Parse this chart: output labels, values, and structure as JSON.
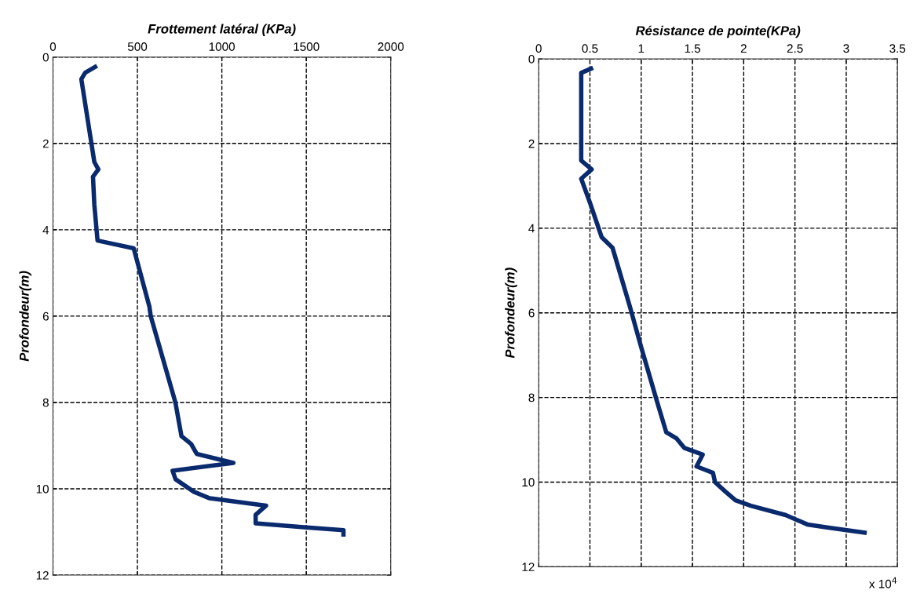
{
  "chart_data": [
    {
      "type": "line",
      "xlabel": "Frottement latéral (KPa)",
      "ylabel": "Profondeur(m)",
      "xlim": [
        0,
        2000
      ],
      "ylim": [
        12,
        0
      ],
      "xticks": [
        0,
        500,
        1000,
        1500,
        2000
      ],
      "yticks": [
        0,
        2,
        4,
        6,
        8,
        10,
        12
      ],
      "grid": true,
      "series": [
        {
          "color": "#0a2a6e",
          "x": [
            261,
            191,
            168,
            245,
            269,
            237,
            245,
            264,
            478,
            571,
            579,
            725,
            761,
            818,
            851,
            1068,
            708,
            726,
            835,
            928,
            1262,
            1200,
            1200,
            1487,
            1720,
            1720
          ],
          "values": [
            0.2,
            0.36,
            0.51,
            2.43,
            2.6,
            2.77,
            3.42,
            4.25,
            4.43,
            5.78,
            6.0,
            8.0,
            8.78,
            8.96,
            9.19,
            9.4,
            9.58,
            9.78,
            10.07,
            10.22,
            10.39,
            10.6,
            10.8,
            10.89,
            10.96,
            11.11
          ]
        }
      ]
    },
    {
      "type": "line",
      "xlabel": "Résistance de pointe(KPa)",
      "ylabel": "Profondeur(m)",
      "xlim": [
        0,
        3.5
      ],
      "ylim": [
        12,
        0
      ],
      "xticks": [
        0,
        0.5,
        1,
        1.5,
        2,
        2.5,
        3,
        3.5
      ],
      "yticks": [
        0,
        2,
        4,
        6,
        8,
        10,
        12
      ],
      "grid": true,
      "annotations": [
        "x 10$^{4}$"
      ],
      "series": [
        {
          "color": "#0a2a6e",
          "x": [
            0.53,
            0.415,
            0.415,
            0.517,
            0.415,
            0.505,
            0.614,
            0.72,
            0.887,
            1.0,
            1.155,
            1.244,
            1.346,
            1.42,
            1.6,
            1.54,
            1.7,
            1.72,
            1.82,
            1.92,
            2.07,
            2.41,
            2.62,
            2.84,
            3.2
          ],
          "values": [
            0.21,
            0.33,
            2.4,
            2.61,
            2.83,
            3.43,
            4.21,
            4.46,
            5.83,
            6.81,
            8.1,
            8.82,
            8.97,
            9.19,
            9.35,
            9.63,
            9.78,
            10.0,
            10.22,
            10.43,
            10.56,
            10.78,
            11.0,
            11.08,
            11.2
          ]
        }
      ]
    }
  ]
}
